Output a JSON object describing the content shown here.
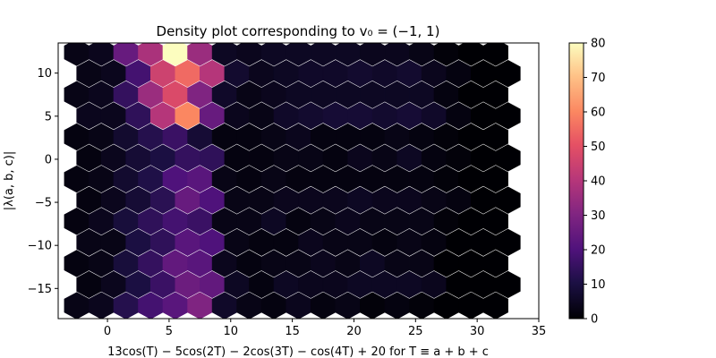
{
  "chart_data": {
    "type": "heatmap",
    "subtype": "hexbin",
    "title": "Density plot corresponding to v₀ = (−1, 1)",
    "xlabel": "13cos(T) − 5cos(2T) − 2cos(3T) − cos(4T) + 20 for T ≡ a + b + c",
    "ylabel": "|λ(a, b, c)|",
    "xlim": [
      -4,
      35
    ],
    "ylim": [
      -18.5,
      13.5
    ],
    "xticks": [
      "0",
      "5",
      "10",
      "15",
      "20",
      "25",
      "30",
      "35"
    ],
    "xtick_values": [
      0,
      5,
      10,
      15,
      20,
      25,
      30,
      35
    ],
    "yticks": [
      "−15",
      "−10",
      "−5",
      "0",
      "5",
      "10"
    ],
    "ytick_values": [
      -15,
      -10,
      -5,
      0,
      5,
      10
    ],
    "hex_grid": {
      "x_start": -2.5,
      "x_step": 2.0,
      "columns": 18,
      "y_start": -17.0,
      "y_step": 2.45,
      "rows": 13
    },
    "counts": [
      [
        3,
        4,
        12,
        18,
        22,
        30,
        6,
        3,
        2,
        4,
        2,
        3,
        1,
        2,
        1,
        0,
        0,
        0
      ],
      [
        2,
        4,
        10,
        16,
        26,
        24,
        5,
        2,
        5,
        4,
        4,
        5,
        5,
        5,
        4,
        0,
        0,
        0
      ],
      [
        2,
        3,
        9,
        15,
        24,
        22,
        4,
        2,
        3,
        3,
        4,
        3,
        5,
        3,
        3,
        0,
        0,
        0
      ],
      [
        3,
        3,
        10,
        14,
        22,
        20,
        3,
        2,
        2,
        4,
        3,
        3,
        2,
        3,
        2,
        0,
        0,
        0
      ],
      [
        2,
        4,
        9,
        14,
        18,
        16,
        3,
        3,
        5,
        2,
        3,
        4,
        3,
        3,
        3,
        1,
        0,
        0
      ],
      [
        2,
        4,
        8,
        13,
        25,
        20,
        3,
        3,
        4,
        4,
        4,
        5,
        4,
        4,
        3,
        2,
        0,
        0
      ],
      [
        2,
        3,
        7,
        11,
        20,
        22,
        3,
        2,
        3,
        2,
        2,
        2,
        2,
        2,
        2,
        1,
        0,
        0
      ],
      [
        2,
        4,
        8,
        10,
        15,
        14,
        2,
        2,
        3,
        3,
        2,
        4,
        3,
        5,
        2,
        1,
        0,
        0
      ],
      [
        2,
        3,
        7,
        12,
        16,
        8,
        2,
        2,
        3,
        4,
        2,
        2,
        2,
        3,
        2,
        1,
        0,
        0
      ],
      [
        4,
        4,
        14,
        40,
        60,
        25,
        4,
        3,
        6,
        7,
        8,
        8,
        7,
        8,
        6,
        2,
        0,
        0
      ],
      [
        3,
        4,
        15,
        35,
        48,
        30,
        6,
        3,
        4,
        5,
        5,
        5,
        5,
        5,
        5,
        2,
        0,
        0
      ],
      [
        3,
        4,
        18,
        45,
        55,
        40,
        7,
        4,
        5,
        6,
        6,
        7,
        6,
        7,
        4,
        2,
        0,
        0
      ],
      [
        3,
        4,
        25,
        38,
        80,
        35,
        5,
        4,
        5,
        5,
        5,
        5,
        4,
        4,
        3,
        1,
        0,
        0
      ]
    ],
    "colorbar": {
      "colormap": "magma",
      "min": 0,
      "max": 80,
      "ticks": [
        "0",
        "10",
        "20",
        "30",
        "40",
        "50",
        "60",
        "70",
        "80"
      ],
      "tick_values": [
        0,
        10,
        20,
        30,
        40,
        50,
        60,
        70,
        80
      ]
    }
  }
}
